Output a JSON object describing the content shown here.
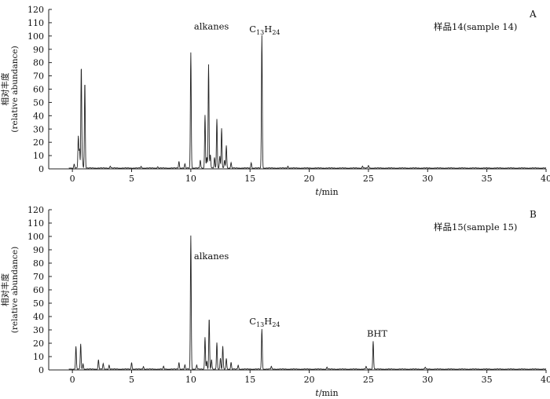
{
  "chart_data": [
    {
      "type": "line",
      "panel": "A",
      "sample_label": "样品14(sample 14)",
      "ylabel_line1": "相对丰度",
      "ylabel_line2": "(relative abundance)",
      "xlabel_italic": "t",
      "xlabel_rest": "/min",
      "xlim": [
        -2,
        40
      ],
      "ylim": [
        0,
        120
      ],
      "xticks": [
        0,
        5,
        10,
        15,
        20,
        25,
        30,
        35,
        40
      ],
      "yticks": [
        0,
        10,
        20,
        30,
        40,
        50,
        60,
        70,
        80,
        90,
        100,
        110,
        120
      ],
      "annotations": [
        {
          "text": "alkanes",
          "x": 10,
          "y": 105
        },
        {
          "text_base": "C",
          "sub1": "13",
          "mid": "H",
          "sub2": "24",
          "x": 16,
          "y": 103
        }
      ],
      "peaks": [
        {
          "rt": 0.15,
          "h": 3
        },
        {
          "rt": 0.5,
          "h": 24
        },
        {
          "rt": 0.6,
          "h": 14
        },
        {
          "rt": 0.75,
          "h": 77
        },
        {
          "rt": 0.85,
          "h": 6
        },
        {
          "rt": 1.05,
          "h": 65
        },
        {
          "rt": 3.2,
          "h": 1.5
        },
        {
          "rt": 5.8,
          "h": 1.2
        },
        {
          "rt": 7.2,
          "h": 1
        },
        {
          "rt": 9.0,
          "h": 5
        },
        {
          "rt": 9.5,
          "h": 3
        },
        {
          "rt": 10.0,
          "h": 87
        },
        {
          "rt": 10.8,
          "h": 6
        },
        {
          "rt": 11.2,
          "h": 40
        },
        {
          "rt": 11.35,
          "h": 8
        },
        {
          "rt": 11.5,
          "h": 78
        },
        {
          "rt": 11.65,
          "h": 10
        },
        {
          "rt": 12.0,
          "h": 8
        },
        {
          "rt": 12.2,
          "h": 37
        },
        {
          "rt": 12.45,
          "h": 9
        },
        {
          "rt": 12.6,
          "h": 30
        },
        {
          "rt": 12.85,
          "h": 6
        },
        {
          "rt": 13.0,
          "h": 17
        },
        {
          "rt": 13.4,
          "h": 4
        },
        {
          "rt": 15.1,
          "h": 4
        },
        {
          "rt": 16.0,
          "h": 100
        },
        {
          "rt": 18.2,
          "h": 1.5
        },
        {
          "rt": 24.5,
          "h": 1.5
        },
        {
          "rt": 25.0,
          "h": 2
        }
      ]
    },
    {
      "type": "line",
      "panel": "B",
      "sample_label": "样品15(sample 15)",
      "ylabel_line1": "相对丰度",
      "ylabel_line2": "(relative abundance)",
      "xlabel_italic": "t",
      "xlabel_rest": "/min",
      "xlim": [
        -2,
        40
      ],
      "ylim": [
        0,
        120
      ],
      "xticks": [
        0,
        5,
        10,
        15,
        20,
        25,
        30,
        35,
        40
      ],
      "yticks": [
        0,
        10,
        20,
        30,
        40,
        50,
        60,
        70,
        80,
        90,
        100,
        110,
        120
      ],
      "annotations": [
        {
          "text": "alkanes",
          "x": 10,
          "y": 83
        },
        {
          "text_base": "C",
          "sub1": "13",
          "mid": "H",
          "sub2": "24",
          "x": 16,
          "y": 34
        },
        {
          "text": "BHT",
          "x": 25.4,
          "y": 25
        }
      ],
      "peaks": [
        {
          "rt": 0.3,
          "h": 17
        },
        {
          "rt": 0.7,
          "h": 19
        },
        {
          "rt": 0.9,
          "h": 4
        },
        {
          "rt": 2.2,
          "h": 7
        },
        {
          "rt": 2.6,
          "h": 4
        },
        {
          "rt": 3.1,
          "h": 3
        },
        {
          "rt": 5.0,
          "h": 5
        },
        {
          "rt": 6.0,
          "h": 2
        },
        {
          "rt": 7.7,
          "h": 2
        },
        {
          "rt": 9.0,
          "h": 5
        },
        {
          "rt": 9.5,
          "h": 3
        },
        {
          "rt": 10.0,
          "h": 100
        },
        {
          "rt": 10.5,
          "h": 3
        },
        {
          "rt": 11.2,
          "h": 24
        },
        {
          "rt": 11.35,
          "h": 6
        },
        {
          "rt": 11.55,
          "h": 38
        },
        {
          "rt": 11.75,
          "h": 7
        },
        {
          "rt": 12.2,
          "h": 20
        },
        {
          "rt": 12.5,
          "h": 8
        },
        {
          "rt": 12.7,
          "h": 17
        },
        {
          "rt": 13.0,
          "h": 8
        },
        {
          "rt": 13.4,
          "h": 5
        },
        {
          "rt": 14.0,
          "h": 3
        },
        {
          "rt": 16.0,
          "h": 30
        },
        {
          "rt": 16.8,
          "h": 2
        },
        {
          "rt": 21.5,
          "h": 1.5
        },
        {
          "rt": 24.8,
          "h": 2
        },
        {
          "rt": 25.4,
          "h": 21
        },
        {
          "rt": 29.8,
          "h": 1.5
        }
      ]
    }
  ]
}
